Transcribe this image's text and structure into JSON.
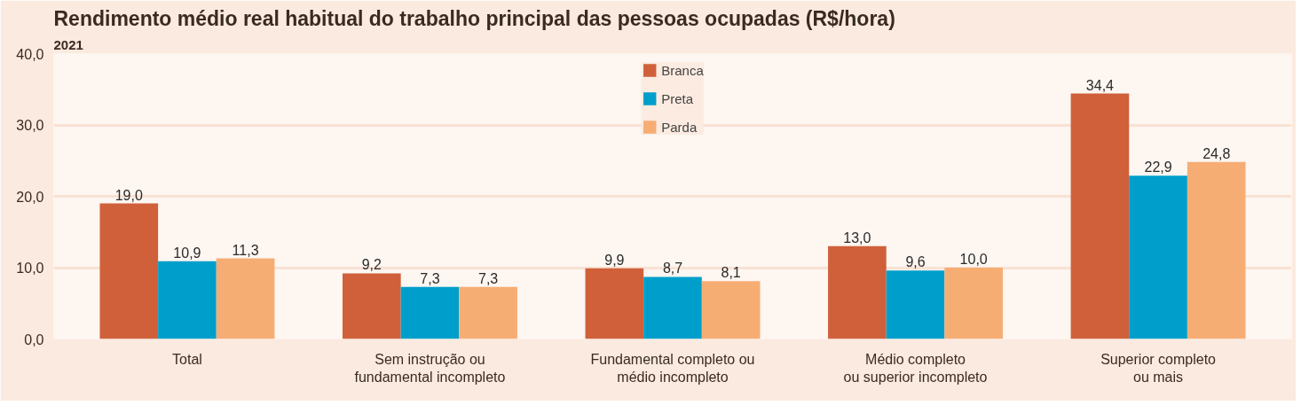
{
  "chart_data": {
    "type": "bar",
    "title": "Rendimento médio real habitual do trabalho principal das pessoas ocupadas (R$/hora)",
    "subtitle": "2021",
    "categories": [
      "Total",
      "Sem instrução ou\nfundamental incompleto",
      "Fundamental completo ou\nmédio incompleto",
      "Médio completo\nou superior incompleto",
      "Superior completo\nou mais"
    ],
    "series": [
      {
        "name": "Branca",
        "color": "#d0603a",
        "values": [
          19.0,
          9.2,
          9.9,
          13.0,
          34.4
        ],
        "value_labels": [
          "19,0",
          "9,2",
          "9,9",
          "13,0",
          "34,4"
        ]
      },
      {
        "name": "Preta",
        "color": "#009fcb",
        "values": [
          10.9,
          7.3,
          8.7,
          9.6,
          22.9
        ],
        "value_labels": [
          "10,9",
          "7,3",
          "8,7",
          "9,6",
          "22,9"
        ]
      },
      {
        "name": "Parda",
        "color": "#f6ad74",
        "values": [
          11.3,
          7.3,
          8.1,
          10.0,
          24.8
        ],
        "value_labels": [
          "11,3",
          "7,3",
          "8,1",
          "10,0",
          "24,8"
        ]
      }
    ],
    "ylim": [
      0,
      40
    ],
    "yticks": [
      {
        "value": 0,
        "label": "0,0"
      },
      {
        "value": 10,
        "label": "10,0"
      },
      {
        "value": 20,
        "label": "20,0"
      },
      {
        "value": 30,
        "label": "30,0"
      },
      {
        "value": 40,
        "label": "40,0"
      }
    ],
    "grid": "y",
    "legend": "top"
  }
}
